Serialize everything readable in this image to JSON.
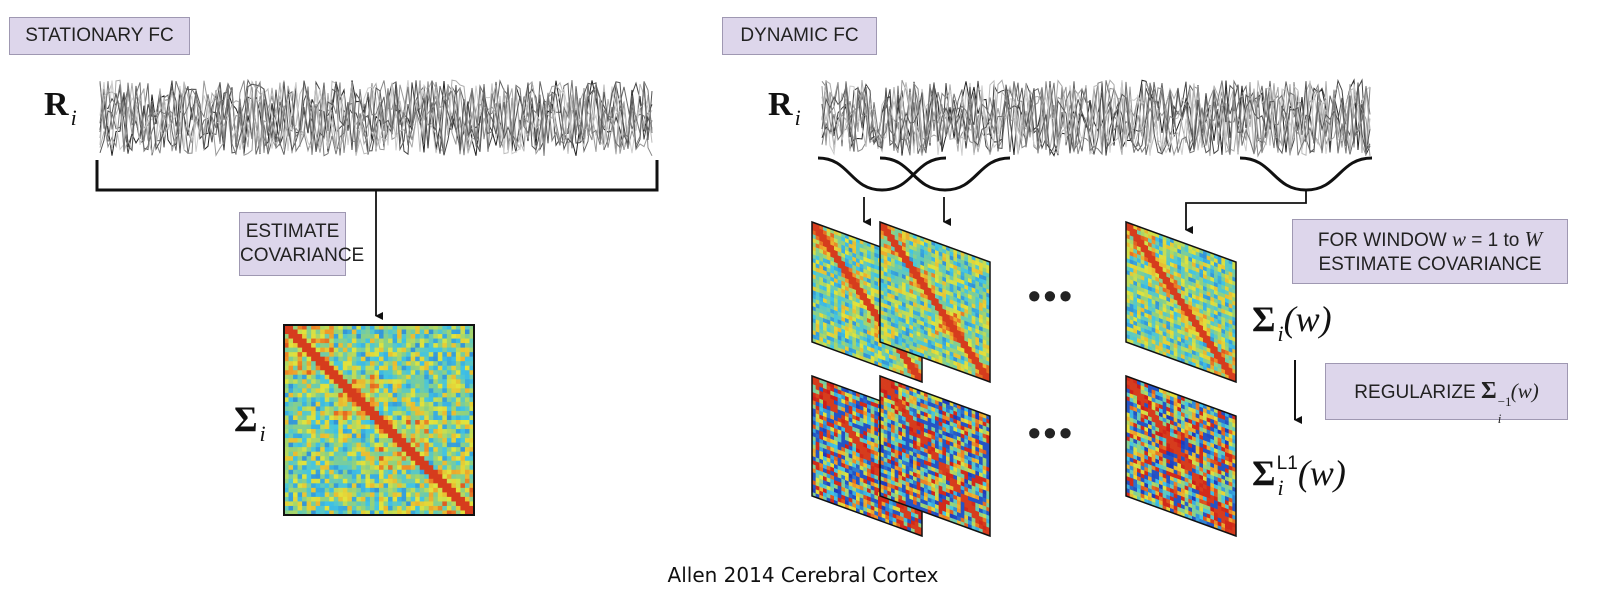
{
  "left_panel": {
    "header": "STATIONARY FC",
    "signal_label": "R",
    "signal_subscript": "i",
    "step_label_line1": "ESTIMATE",
    "step_label_line2": "COVARIANCE",
    "matrix_label": "Σ",
    "matrix_subscript": "i"
  },
  "right_panel": {
    "header": "DYNAMIC FC",
    "signal_label": "R",
    "signal_subscript": "i",
    "window_label_pre": "FOR WINDOW ",
    "window_var": "w",
    "window_label_mid": " = 1 to ",
    "window_max": "W",
    "window_label_line2": "ESTIMATE COVARIANCE",
    "cov_label": "Σ",
    "cov_subscript": "i",
    "cov_arg": "(w)",
    "regularize_text": "REGULARIZE ",
    "regularize_sigma": "Σ",
    "regularize_sub": "i",
    "regularize_sup": "−1",
    "regularize_arg": "(w)",
    "l1_label": "Σ",
    "l1_subscript": "i",
    "l1_sup": "L1",
    "l1_arg": "(w)",
    "ellipsis": "•••"
  },
  "caption": "Allen 2014 Cerebral Cortex",
  "colors": {
    "label_fill": "#ddd6eb",
    "label_border": "#9f98b2",
    "heatmap_low": "#2b55c8",
    "heatmap_mid": "#dfe33a",
    "heatmap_high": "#d62418"
  }
}
